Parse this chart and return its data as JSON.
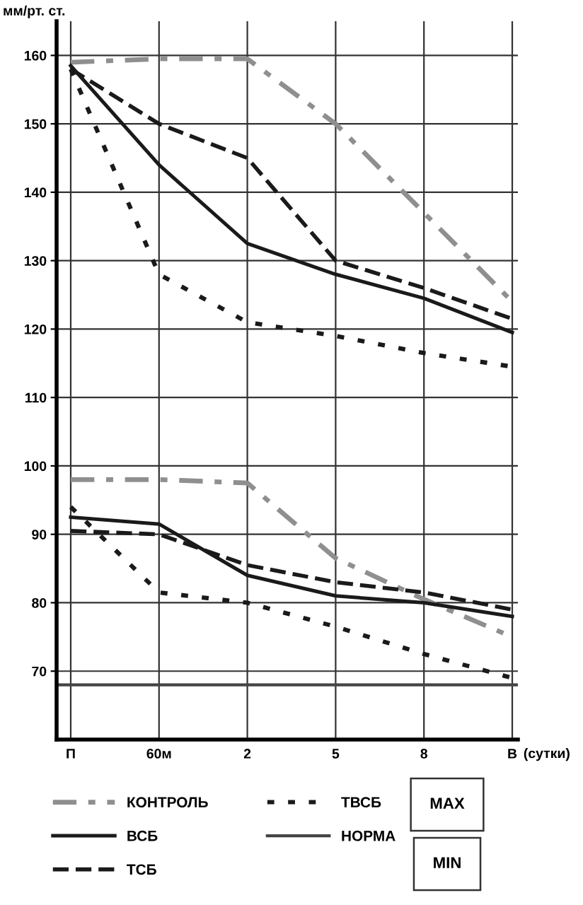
{
  "chart_data": {
    "type": "line",
    "ylabel": "мм/рт. ст.",
    "xlabel": "(сутки)",
    "categories": [
      "П",
      "60м",
      "2",
      "5",
      "8",
      "В"
    ],
    "ylim": [
      60,
      165
    ],
    "yticks": [
      70,
      80,
      90,
      100,
      110,
      120,
      130,
      140,
      150,
      160
    ],
    "grid": true,
    "legend": "bottom",
    "series": [
      {
        "name": "КОНТРОЛЬ",
        "color": "#8f8f8f",
        "line_style": "dashdot",
        "values": [
          159,
          159.5,
          159.5,
          150,
          137,
          124
        ]
      },
      {
        "name": "ВСБ",
        "color": "#1a1a1a",
        "line_style": "solid",
        "values": [
          158.5,
          144,
          132.5,
          128,
          124.5,
          119.5
        ]
      },
      {
        "name": "ТСБ",
        "color": "#1a1a1a",
        "line_style": "dashed",
        "values": [
          158,
          150,
          145,
          130,
          126,
          121.5
        ]
      },
      {
        "name": "ТВСБ",
        "color": "#1a1a1a",
        "line_style": "dotted",
        "values": [
          158,
          128,
          121,
          119,
          116.5,
          114.5
        ]
      },
      {
        "color": "#8f8f8f",
        "line_style": "dashdot",
        "values": [
          98,
          98,
          97.5,
          86.5,
          80.5,
          75
        ]
      },
      {
        "color": "#1a1a1a",
        "line_style": "solid",
        "values": [
          92.5,
          91.5,
          84,
          81,
          80,
          78
        ]
      },
      {
        "color": "#1a1a1a",
        "line_style": "dashed",
        "values": [
          90.5,
          90,
          85.5,
          83,
          81.5,
          79
        ]
      },
      {
        "color": "#1a1a1a",
        "line_style": "dotted",
        "values": [
          94,
          81.5,
          80,
          76.5,
          72.5,
          69
        ]
      }
    ],
    "ref_lines": [
      {
        "axis": "y",
        "value": 68,
        "label": "НОРМА",
        "color": "#444444",
        "line_style": "solid"
      }
    ],
    "annotations": [
      "MAX",
      "MIN"
    ]
  }
}
